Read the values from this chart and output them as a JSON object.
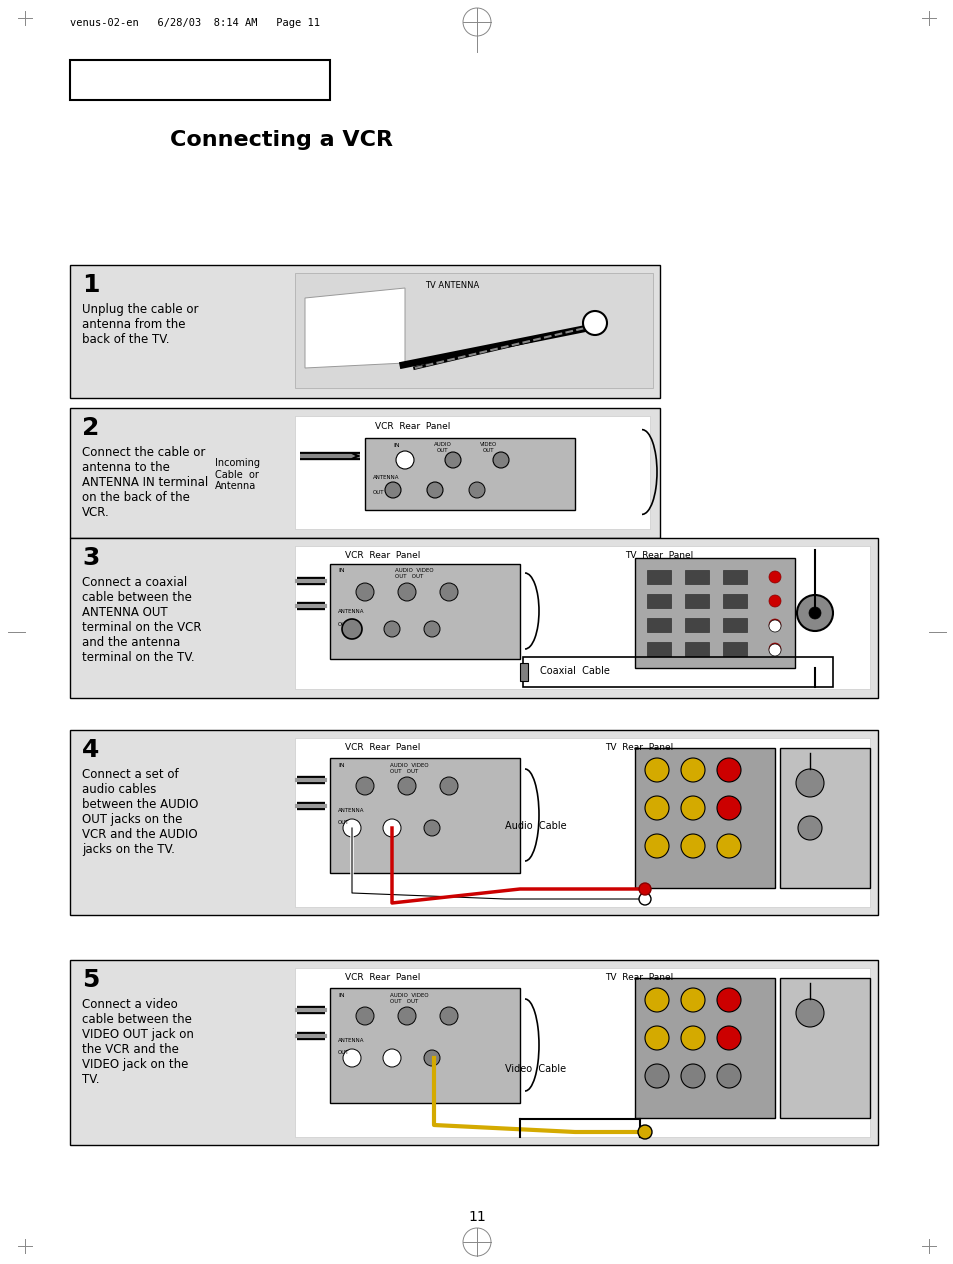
{
  "page_bg": "#ffffff",
  "panel_bg": "#e0e0e0",
  "panel_inner_bg": "#ffffff",
  "panel_dark": "#b8b8b8",
  "title": "Connecting a VCR",
  "header_text": "venus-02-en   6/28/03  8:14 AM   Page 11",
  "page_number": "11",
  "step1_text": "Unplug the cable or\nantenna from the\nback of the TV.",
  "step2_text": "Connect the cable or\nantenna to the\nANTENNA IN terminal\non the back of the\nVCR.",
  "step3_text": "Connect a coaxial\ncable between the\nANTENNA OUT\nterminal on the VCR\nand the antenna\nterminal on the TV.",
  "step4_text": "Connect a set of\naudio cables\nbetween the AUDIO\nOUT jacks on the\nVCR and the AUDIO\njacks on the TV.",
  "step5_text": "Connect a video\ncable between the\nVIDEO OUT jack on\nthe VCR and the\nVIDEO jack on the\nTV.",
  "red_color": "#cc0000",
  "yellow_color": "#d4aa00",
  "white_color": "#ffffff",
  "gray_color": "#909090",
  "dark_gray": "#606060",
  "vcr_label": "VCR  Rear  Panel",
  "tv_label": "TV  Rear  Panel",
  "coaxial_label": "Coaxial  Cable",
  "audio_label": "Audio  Cable",
  "video_label": "Video  Cable",
  "incoming_label": "Incoming\nCable  or\nAntenna",
  "tv_antenna_label": "TV ANTENNA"
}
